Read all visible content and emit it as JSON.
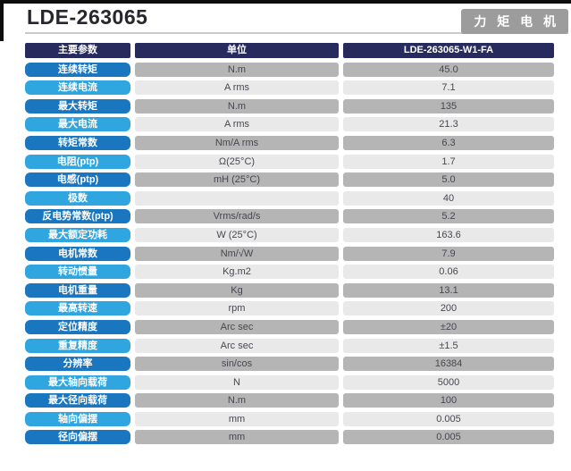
{
  "page": {
    "title": "LDE-263065",
    "badge": "力 矩 电 机"
  },
  "table": {
    "headers": [
      "主要参数",
      "单位",
      "LDE-263065-W1-FA"
    ],
    "rows": [
      {
        "param": "连续转矩",
        "unit": "N.m",
        "value": "45.0"
      },
      {
        "param": "连续电流",
        "unit": "A rms",
        "value": "7.1"
      },
      {
        "param": "最大转矩",
        "unit": "N.m",
        "value": "135"
      },
      {
        "param": "最大电流",
        "unit": "A rms",
        "value": "21.3"
      },
      {
        "param": "转矩常数",
        "unit": "Nm/A rms",
        "value": "6.3"
      },
      {
        "param": "电阻(ptp)",
        "unit": "Ω(25°C)",
        "value": "1.7"
      },
      {
        "param": "电感(ptp)",
        "unit": "mH (25°C)",
        "value": "5.0"
      },
      {
        "param": "极数",
        "unit": "",
        "value": "40"
      },
      {
        "param": "反电势常数(ptp)",
        "unit": "Vrms/rad/s",
        "value": "5.2"
      },
      {
        "param": "最大额定功耗",
        "unit": "W (25°C)",
        "value": "163.6"
      },
      {
        "param": "电机常数",
        "unit": "Nm/√W",
        "value": "7.9"
      },
      {
        "param": "转动惯量",
        "unit": "Kg.m2",
        "value": "0.06"
      },
      {
        "param": "电机重量",
        "unit": "Kg",
        "value": "13.1"
      },
      {
        "param": "最高转速",
        "unit": "rpm",
        "value": "200"
      },
      {
        "param": "定位精度",
        "unit": "Arc sec",
        "value": "±20"
      },
      {
        "param": "重复精度",
        "unit": "Arc sec",
        "value": "±1.5"
      },
      {
        "param": "分辨率",
        "unit": "sin/cos",
        "value": "16384"
      },
      {
        "param": "最大轴向载荷",
        "unit": "N",
        "value": "5000"
      },
      {
        "param": "最大径向载荷",
        "unit": "N.m",
        "value": "100"
      },
      {
        "param": "轴向偏摆",
        "unit": "mm",
        "value": "0.005"
      },
      {
        "param": "径向偏摆",
        "unit": "mm",
        "value": "0.005"
      }
    ]
  },
  "colors": {
    "frame_black": "#0d0d0d",
    "title_color": "#26262c",
    "underline_gray": "#c9c9c9",
    "badge_gray": "#9c9c9c",
    "header_navy": "#272a5d",
    "pill_dark": "#1b76c0",
    "pill_light": "#30a6e0",
    "cell_dark": "#b5b5b6",
    "cell_light": "#e9e9ea",
    "cell_text": "#47474f"
  }
}
